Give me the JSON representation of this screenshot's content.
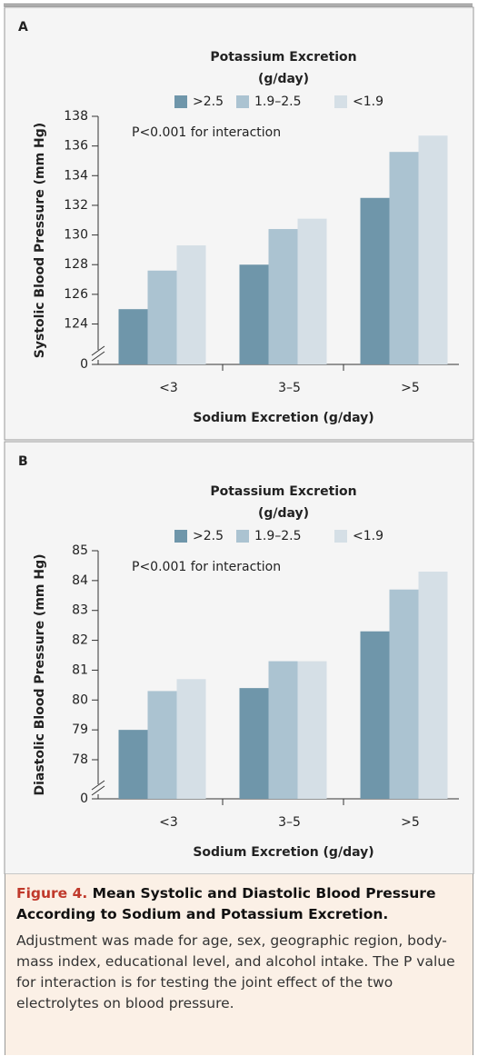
{
  "chart_data": [
    {
      "type": "bar",
      "panel": "A",
      "legend_title": [
        "Potassium Excretion",
        "(g/day)"
      ],
      "annotation": "P<0.001 for interaction",
      "ylabel": "Systolic Blood Pressure (mm Hg)",
      "xlabel": "Sodium Excretion (g/day)",
      "categories": [
        "<3",
        "3–5",
        ">5"
      ],
      "series": [
        {
          "name": ">2.5",
          "color": "#6f96aa",
          "values": [
            125.0,
            128.0,
            132.5
          ]
        },
        {
          "name": "1.9–2.5",
          "color": "#abc3d1",
          "values": [
            127.6,
            130.4,
            135.6
          ]
        },
        {
          "name": "<1.9",
          "color": "#d5dfe6",
          "values": [
            129.3,
            131.1,
            136.7
          ]
        }
      ],
      "ylim": [
        0,
        138
      ],
      "ybreak": [
        0,
        122.5
      ],
      "yticks": [
        0,
        124,
        126,
        128,
        130,
        132,
        134,
        136,
        138
      ]
    },
    {
      "type": "bar",
      "panel": "B",
      "legend_title": [
        "Potassium Excretion",
        "(g/day)"
      ],
      "annotation": "P<0.001 for interaction",
      "ylabel": "Diastolic Blood Pressure (mm Hg)",
      "xlabel": "Sodium Excretion (g/day)",
      "categories": [
        "<3",
        "3–5",
        ">5"
      ],
      "series": [
        {
          "name": ">2.5",
          "color": "#6f96aa",
          "values": [
            79.0,
            80.4,
            82.3
          ]
        },
        {
          "name": "1.9–2.5",
          "color": "#abc3d1",
          "values": [
            80.3,
            81.3,
            83.7
          ]
        },
        {
          "name": "<1.9",
          "color": "#d5dfe6",
          "values": [
            80.7,
            81.3,
            84.3
          ]
        }
      ],
      "ylim": [
        0,
        85
      ],
      "ybreak": [
        0,
        77.3
      ],
      "yticks": [
        0,
        78,
        79,
        80,
        81,
        82,
        83,
        84,
        85
      ]
    }
  ],
  "caption": {
    "figure_label": "Figure 4.",
    "title": "Mean Systolic and Diastolic Blood Pressure According to Sodium and Potassium Excretion.",
    "body": "Adjustment was made for age, sex, geographic region, body-mass index, educational level, and alcohol intake. The P value for interaction is for testing the joint effect of the two electrolytes on blood pressure."
  }
}
